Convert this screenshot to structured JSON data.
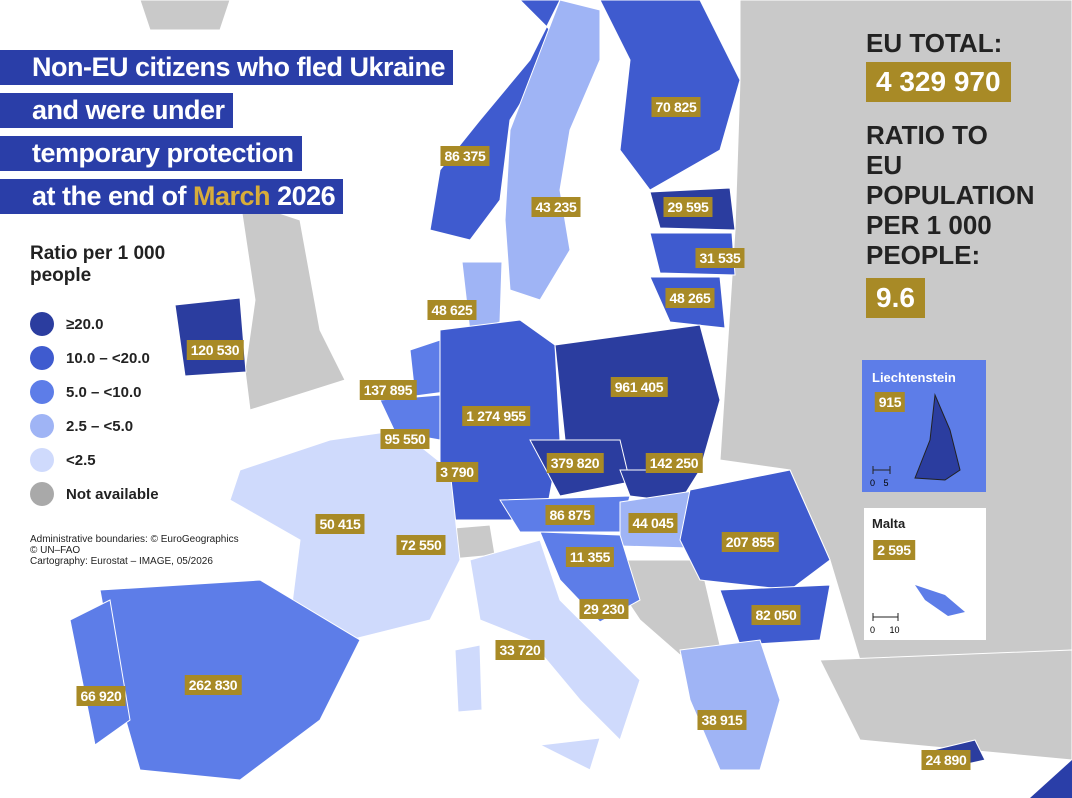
{
  "title": {
    "lines": [
      "Non-EU citizens who fled Ukraine",
      "and were under",
      "temporary protection"
    ],
    "last_line": {
      "before": "at the end of",
      "highlight": "March",
      "after": "2026"
    }
  },
  "legend": {
    "heading": "Ratio per 1 000 people",
    "items": [
      {
        "label": "≥20.0",
        "color": "#2b3d9f"
      },
      {
        "label": "10.0 – <20.0",
        "color": "#3f5bcf"
      },
      {
        "label": "5.0 – <10.0",
        "color": "#5d7de8"
      },
      {
        "label": "2.5 – <5.0",
        "color": "#9fb4f5"
      },
      {
        "label": "<2.5",
        "color": "#cfdafc"
      },
      {
        "label": "Not available",
        "color": "#a9a9a9"
      }
    ]
  },
  "credits": [
    "Administrative boundaries: © EuroGeographics",
    "© UN–FAO",
    "Cartography: Eurostat – IMAGE, 05/2026"
  ],
  "summary": {
    "total_label": "EU TOTAL:",
    "total": "4 329 970",
    "ratio_label": "RATIO TO EU POPULATION PER 1 000 PEOPLE:",
    "ratio": "9.6"
  },
  "countries": [
    {
      "label": "120 530"
    },
    {
      "label": "86 375"
    },
    {
      "label": "70 825"
    },
    {
      "label": "43 235"
    },
    {
      "label": "29 595"
    },
    {
      "label": "31 535"
    },
    {
      "label": "48 265"
    },
    {
      "label": "48 625"
    },
    {
      "label": "137 895"
    },
    {
      "label": "1 274 955"
    },
    {
      "label": "961 405"
    },
    {
      "label": "95 550"
    },
    {
      "label": "3 790"
    },
    {
      "label": "379 820"
    },
    {
      "label": "142 250"
    },
    {
      "label": "50 415"
    },
    {
      "label": "72 550"
    },
    {
      "label": "86 875"
    },
    {
      "label": "44 045"
    },
    {
      "label": "11 355"
    },
    {
      "label": "207 855"
    },
    {
      "label": "29 230"
    },
    {
      "label": "82 050"
    },
    {
      "label": "33 720"
    },
    {
      "label": "66 920"
    },
    {
      "label": "262 830"
    },
    {
      "label": "38 915"
    },
    {
      "label": "24 890"
    }
  ],
  "insets": [
    {
      "name": "Liechtenstein",
      "label": "915",
      "scale": "0 5"
    },
    {
      "name": "Malta",
      "label": "2 595",
      "scale": "0 10"
    }
  ]
}
